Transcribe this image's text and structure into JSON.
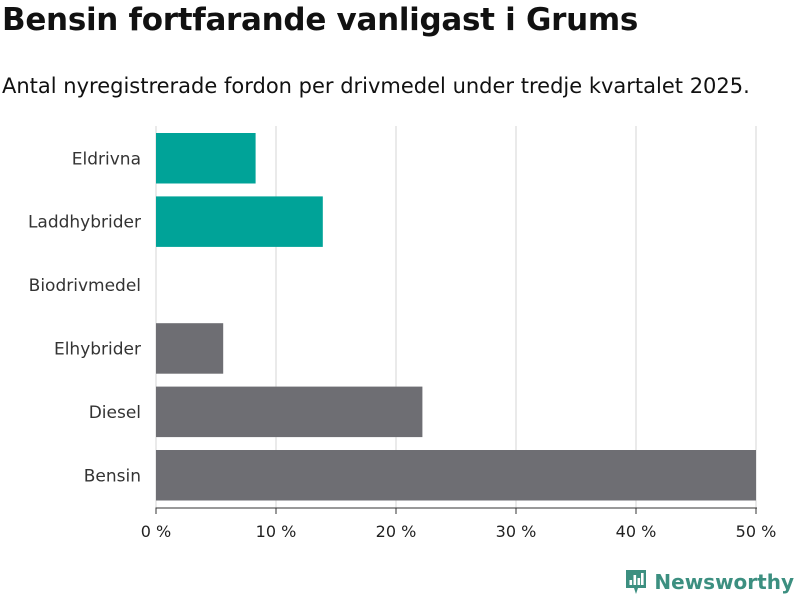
{
  "chart_data": {
    "type": "bar",
    "orientation": "horizontal",
    "title": "Bensin fortfarande vanligast i Grums",
    "subtitle": "Antal nyregistrerade fordon per drivmedel under tredje kvartalet 2025.",
    "categories": [
      "Eldrivna",
      "Laddhybrider",
      "Biodrivmedel",
      "Elhybrider",
      "Diesel",
      "Bensin"
    ],
    "values": [
      8.3,
      13.9,
      0,
      5.6,
      22.2,
      50.0
    ],
    "bar_colors": [
      "#00a398",
      "#00a398",
      "#6e6e73",
      "#6e6e73",
      "#6e6e73",
      "#6e6e73"
    ],
    "xlim": [
      0,
      50
    ],
    "x_ticks": [
      0,
      10,
      20,
      30,
      40,
      50
    ],
    "x_tick_labels": [
      "0 %",
      "10 %",
      "20 %",
      "30 %",
      "40 %",
      "50 %"
    ],
    "xlabel": "",
    "ylabel": "",
    "grid": true,
    "legend": "none"
  },
  "brand": {
    "name": "Newsworthy",
    "icon": "newsworthy-logo-icon",
    "color": "#3c8f80"
  }
}
